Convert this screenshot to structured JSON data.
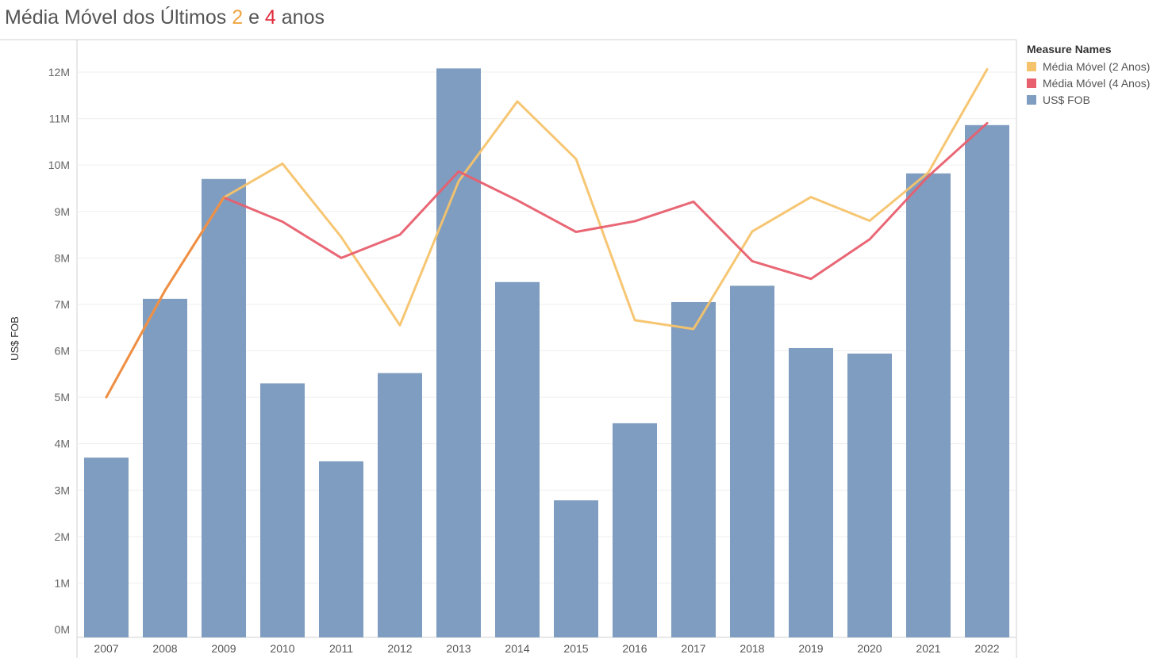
{
  "title": {
    "prefix": "Média Móvel dos Últimos ",
    "n2": "2",
    "mid": " e ",
    "n4": "4",
    "suffix": " anos"
  },
  "legend": {
    "title": "Measure Names",
    "items": [
      {
        "label": "Média Móvel (2 Anos)",
        "color": "#f5c36b"
      },
      {
        "label": "Média Móvel (4 Anos)",
        "color": "#e85f6e"
      },
      {
        "label": "US$ FOB",
        "color": "#7f9dc0"
      }
    ]
  },
  "chart_data": {
    "type": "bar",
    "ylabel": "US$ FOB",
    "ylim": [
      0,
      12000000
    ],
    "yticks": [
      "0M",
      "1M",
      "2M",
      "3M",
      "4M",
      "5M",
      "6M",
      "7M",
      "8M",
      "9M",
      "10M",
      "11M",
      "12M"
    ],
    "categories": [
      "2007",
      "2008",
      "2009",
      "2010",
      "2011",
      "2012",
      "2013",
      "2014",
      "2015",
      "2016",
      "2017",
      "2018",
      "2019",
      "2020",
      "2021",
      "2022"
    ],
    "series": [
      {
        "name": "US$ FOB",
        "type": "bar",
        "color": "#7f9dc0",
        "values": [
          3700000,
          7120000,
          9700000,
          5300000,
          3620000,
          5520000,
          12080000,
          7480000,
          2780000,
          4440000,
          7050000,
          7400000,
          6060000,
          5940000,
          9820000,
          10860000
        ]
      },
      {
        "name": "Média Móvel (2 Anos)",
        "type": "line",
        "color": "#f5c36b",
        "values": [
          5000000,
          7300000,
          9300000,
          10030000,
          8450000,
          6550000,
          9650000,
          11370000,
          10130000,
          6660000,
          6470000,
          8570000,
          9310000,
          8800000,
          9840000,
          12060000
        ]
      },
      {
        "name": "Média Móvel (4 Anos)",
        "type": "line",
        "color": "#e85f6e",
        "values": [
          5000000,
          7300000,
          9300000,
          8780000,
          8000000,
          8500000,
          9860000,
          9240000,
          8560000,
          8790000,
          9210000,
          7930000,
          7550000,
          8400000,
          9760000,
          10900000
        ]
      }
    ],
    "overlap_color": "#ef8f45",
    "grid": true,
    "legend_position": "right"
  }
}
